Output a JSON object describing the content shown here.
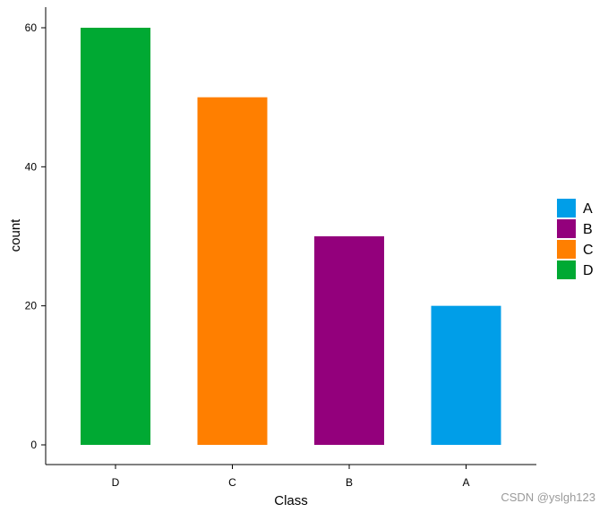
{
  "chart_data": {
    "type": "bar",
    "categories": [
      "D",
      "C",
      "B",
      "A"
    ],
    "values": [
      60,
      50,
      30,
      20
    ],
    "colors": [
      "#00a933",
      "#ff7f00",
      "#93007c",
      "#009ee8"
    ],
    "xlabel": "Class",
    "ylabel": "count",
    "ylim": [
      0,
      60
    ],
    "yticks": [
      0,
      20,
      40,
      60
    ],
    "grid": false,
    "legend": {
      "placement": "right",
      "entries": [
        {
          "label": "A",
          "color": "#009ee8"
        },
        {
          "label": "B",
          "color": "#93007c"
        },
        {
          "label": "C",
          "color": "#ff7f00"
        },
        {
          "label": "D",
          "color": "#00a933"
        }
      ]
    }
  },
  "watermark": "CSDN @yslgh123"
}
